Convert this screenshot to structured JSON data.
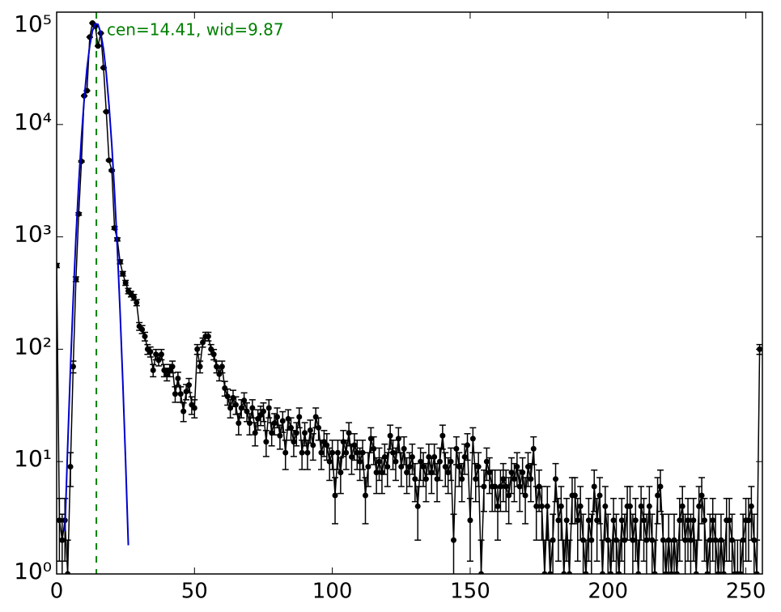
{
  "chart_data": {
    "type": "errorbar",
    "annotation": "cen=14.41, wid=9.87",
    "annotation_color": "#008000",
    "vline": {
      "x": 14.41,
      "color": "#008000"
    },
    "xlim": [
      0,
      256
    ],
    "xticks": [
      0,
      50,
      100,
      150,
      200,
      250
    ],
    "ylim": [
      1,
      100000
    ],
    "ylog": true,
    "yticks": [
      {
        "value": 1,
        "label": "10⁰"
      },
      {
        "value": 10,
        "label": "10¹"
      },
      {
        "value": 100,
        "label": "10²"
      },
      {
        "value": 1000,
        "label": "10³"
      },
      {
        "value": 10000,
        "label": "10⁴"
      },
      {
        "value": 100000,
        "label": "10⁵"
      }
    ],
    "series": [
      {
        "color": "#000000",
        "x": [
          0,
          1,
          2,
          3,
          4,
          5,
          6,
          7,
          8,
          9,
          10,
          11,
          12,
          13,
          14,
          15,
          16,
          17,
          18,
          19,
          20,
          21,
          22,
          23,
          24,
          25,
          26,
          27,
          28,
          29,
          30,
          31,
          32,
          33,
          34,
          35,
          36,
          37,
          38,
          39,
          40,
          41,
          42,
          43,
          44,
          45,
          46,
          47,
          48,
          49,
          50,
          51,
          52,
          53,
          54,
          55,
          56,
          57,
          58,
          59,
          60,
          61,
          62,
          63,
          64,
          65,
          66,
          67,
          68,
          69,
          70,
          71,
          72,
          73,
          74,
          75,
          76,
          77,
          78,
          79,
          80,
          81,
          82,
          83,
          84,
          85,
          86,
          87,
          88,
          89,
          90,
          91,
          92,
          93,
          94,
          95,
          96,
          97,
          98,
          99,
          100,
          101,
          102,
          103,
          104,
          105,
          106,
          107,
          108,
          109,
          110,
          111,
          112,
          113,
          114,
          115,
          116,
          117,
          118,
          119,
          120,
          121,
          122,
          123,
          124,
          125,
          126,
          127,
          128,
          129,
          130,
          131,
          132,
          133,
          134,
          135,
          136,
          137,
          138,
          139,
          140,
          141,
          142,
          143,
          144,
          145,
          146,
          147,
          148,
          149,
          150,
          151,
          152,
          153,
          154,
          155,
          156,
          157,
          158,
          159,
          160,
          161,
          162,
          163,
          164,
          165,
          166,
          167,
          168,
          169,
          170,
          171,
          172,
          173,
          174,
          175,
          176,
          177,
          178,
          179,
          180,
          181,
          182,
          183,
          184,
          185,
          186,
          187,
          188,
          189,
          190,
          191,
          192,
          193,
          194,
          195,
          196,
          197,
          198,
          199,
          200,
          201,
          202,
          203,
          204,
          205,
          206,
          207,
          208,
          209,
          210,
          211,
          212,
          213,
          214,
          215,
          216,
          217,
          218,
          219,
          220,
          221,
          222,
          223,
          224,
          225,
          226,
          227,
          228,
          229,
          230,
          231,
          232,
          233,
          234,
          235,
          236,
          237,
          238,
          239,
          240,
          241,
          242,
          243,
          244,
          245,
          246,
          247,
          248,
          249,
          250,
          251,
          252,
          253,
          254,
          255
        ],
        "values": [
          556,
          3,
          2,
          3,
          1,
          9,
          70,
          420,
          1600,
          4700,
          18000,
          20000,
          60000,
          80000,
          75000,
          50000,
          65000,
          32000,
          13000,
          4800,
          3900,
          1200,
          950,
          600,
          470,
          390,
          330,
          310,
          290,
          260,
          160,
          150,
          130,
          100,
          95,
          65,
          90,
          80,
          90,
          65,
          60,
          65,
          70,
          40,
          55,
          40,
          28,
          42,
          48,
          32,
          30,
          100,
          70,
          115,
          130,
          130,
          100,
          90,
          70,
          60,
          70,
          45,
          38,
          30,
          37,
          32,
          22,
          30,
          35,
          28,
          22,
          30,
          18,
          24,
          26,
          28,
          15,
          30,
          18,
          22,
          25,
          17,
          23,
          12,
          24,
          20,
          15,
          18,
          25,
          12,
          18,
          12,
          19,
          14,
          25,
          20,
          12,
          15,
          14,
          10,
          12,
          5,
          12,
          8,
          15,
          12,
          18,
          11,
          14,
          12,
          10,
          12,
          5,
          9,
          16,
          13,
          8,
          10,
          8,
          11,
          9,
          17,
          12,
          10,
          16,
          9,
          13,
          8,
          9,
          11,
          7,
          4,
          10,
          9,
          7,
          11,
          8,
          11,
          7,
          10,
          17,
          9,
          8,
          10,
          2,
          13,
          9,
          7,
          11,
          14,
          3,
          16,
          7,
          9,
          1,
          6,
          10,
          8,
          6,
          6,
          4,
          6,
          7,
          6,
          5,
          8,
          7,
          9,
          6,
          8,
          5,
          9,
          7,
          13,
          4,
          6,
          4,
          1,
          4,
          1,
          2,
          7,
          3,
          4,
          1,
          3,
          1,
          5,
          5,
          3,
          4,
          2,
          1,
          3,
          2,
          6,
          3,
          5,
          1,
          4,
          2,
          1,
          3,
          2,
          1,
          3,
          2,
          4,
          4,
          2,
          3,
          1,
          4,
          3,
          2,
          4,
          2,
          1,
          5,
          6,
          2,
          1,
          2,
          1,
          2,
          1,
          3,
          4,
          2,
          3,
          2,
          3,
          1,
          4,
          5,
          3,
          1,
          2,
          3,
          2,
          1,
          2,
          1,
          3,
          3,
          2,
          1,
          1,
          1,
          2,
          3,
          3,
          4,
          2,
          1,
          100
        ],
        "errors": [
          23.6,
          1.7,
          1.4,
          1.7,
          1,
          3,
          8.4,
          20.5,
          40,
          68.6,
          134,
          141,
          245,
          283,
          274,
          224,
          255,
          179,
          114,
          69.3,
          62.4,
          34.6,
          30.8,
          24.5,
          21.7,
          19.7,
          18.2,
          17.6,
          17,
          16.1,
          12.6,
          12.2,
          11.4,
          10,
          9.7,
          8.1,
          9.5,
          8.9,
          9.5,
          8.1,
          7.7,
          8.1,
          8.4,
          6.3,
          7.4,
          6.3,
          5.3,
          6.5,
          6.9,
          5.7,
          5.5,
          10,
          8.4,
          10.7,
          11.4,
          11.4,
          10,
          9.5,
          8.4,
          7.7,
          8.4,
          6.7,
          6.2,
          5.5,
          6.1,
          5.7,
          4.7,
          5.5,
          5.9,
          5.3,
          4.7,
          5.5,
          4.2,
          4.9,
          5.1,
          5.3,
          3.9,
          5.5,
          4.2,
          4.7,
          5,
          4.1,
          4.8,
          3.5,
          4.9,
          4.5,
          3.9,
          4.2,
          5,
          3.5,
          4.2,
          3.5,
          4.4,
          3.7,
          5,
          4.5,
          3.5,
          3.9,
          3.7,
          3.2,
          3.5,
          2.2,
          3.5,
          2.8,
          3.9,
          3.5,
          4.2,
          3.3,
          3.7,
          3.5,
          3.2,
          3.5,
          2.2,
          3,
          4,
          3.6,
          2.8,
          3.2,
          2.8,
          3.3,
          3,
          4.1,
          3.5,
          3.2,
          4,
          3,
          3.6,
          2.8,
          3,
          3.3,
          2.6,
          2,
          3.2,
          3,
          2.6,
          3.3,
          2.8,
          3.3,
          2.6,
          3.2,
          4.1,
          3,
          2.8,
          3.2,
          1.4,
          3.6,
          3,
          2.6,
          3.3,
          3.7,
          1.7,
          4,
          2.6,
          3,
          1,
          2.4,
          3.2,
          2.8,
          2.4,
          2.4,
          2,
          2.4,
          2.6,
          2.4,
          2.2,
          2.8,
          2.6,
          3,
          2.4,
          2.8,
          2.2,
          3,
          2.6,
          3.6,
          2,
          2.4,
          2,
          1,
          2,
          1,
          1.4,
          2.6,
          1.7,
          2,
          1,
          1.7,
          1,
          2.2,
          2.2,
          1.7,
          2,
          1.4,
          1,
          1.7,
          1.4,
          2.4,
          1.7,
          2.2,
          1,
          2,
          1.4,
          1,
          1.7,
          1.4,
          1,
          1.7,
          1.4,
          2,
          2,
          1.4,
          1.7,
          1,
          2,
          1.7,
          1.4,
          2,
          1.4,
          1,
          2.2,
          2.4,
          1.4,
          1,
          1.4,
          1,
          1.4,
          1,
          1.7,
          2,
          1.4,
          1.7,
          1.4,
          1.7,
          1,
          2,
          2.2,
          1.7,
          1,
          1.4,
          1.7,
          1.4,
          1,
          1.4,
          1,
          1.7,
          1.7,
          1.4,
          1,
          1,
          1,
          1.4,
          1.7,
          1.7,
          2,
          1.4,
          1,
          10
        ]
      },
      {
        "color": "#0000cc",
        "x": [
          3,
          4,
          5,
          6,
          7,
          8,
          9,
          10,
          11,
          12,
          13,
          14,
          15,
          16,
          17,
          18,
          19,
          20,
          21,
          22,
          23,
          24,
          25,
          26
        ],
        "values": [
          2.4,
          13.7,
          67,
          277,
          990,
          2980,
          7700,
          16900,
          31500,
          50200,
          68200,
          78900,
          77800,
          65400,
          46800,
          28500,
          14800,
          6570,
          2490,
          800,
          219,
          51,
          10.2,
          1.8
        ]
      }
    ]
  }
}
